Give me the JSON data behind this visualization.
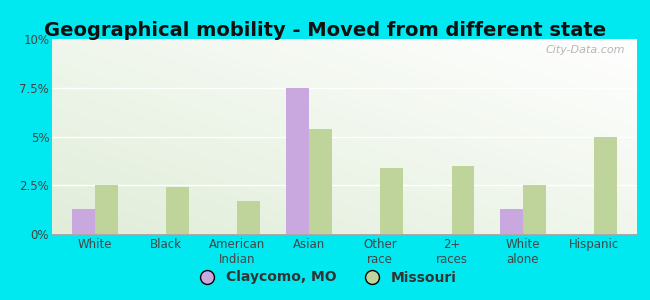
{
  "title": "Geographical mobility - Moved from different state",
  "categories": [
    "White",
    "Black",
    "American\nIndian",
    "Asian",
    "Other\nrace",
    "2+\nraces",
    "White\nalone",
    "Hispanic"
  ],
  "claycomo_values": [
    1.3,
    0.0,
    0.0,
    7.5,
    0.0,
    0.0,
    1.3,
    0.0
  ],
  "missouri_values": [
    2.5,
    2.4,
    1.7,
    5.4,
    3.4,
    3.5,
    2.5,
    5.0
  ],
  "claycomo_color": "#c9a8e0",
  "missouri_color": "#bfd49a",
  "background_color": "#00e8f0",
  "ylim": [
    0,
    10
  ],
  "yticks": [
    0,
    2.5,
    5.0,
    7.5,
    10.0
  ],
  "ytick_labels": [
    "0%",
    "2.5%",
    "5%",
    "7.5%",
    "10%"
  ],
  "bar_width": 0.32,
  "legend_claycomo": "Claycomo, MO",
  "legend_missouri": "Missouri",
  "watermark": "City-Data.com",
  "title_fontsize": 14,
  "tick_fontsize": 8.5,
  "legend_fontsize": 10
}
